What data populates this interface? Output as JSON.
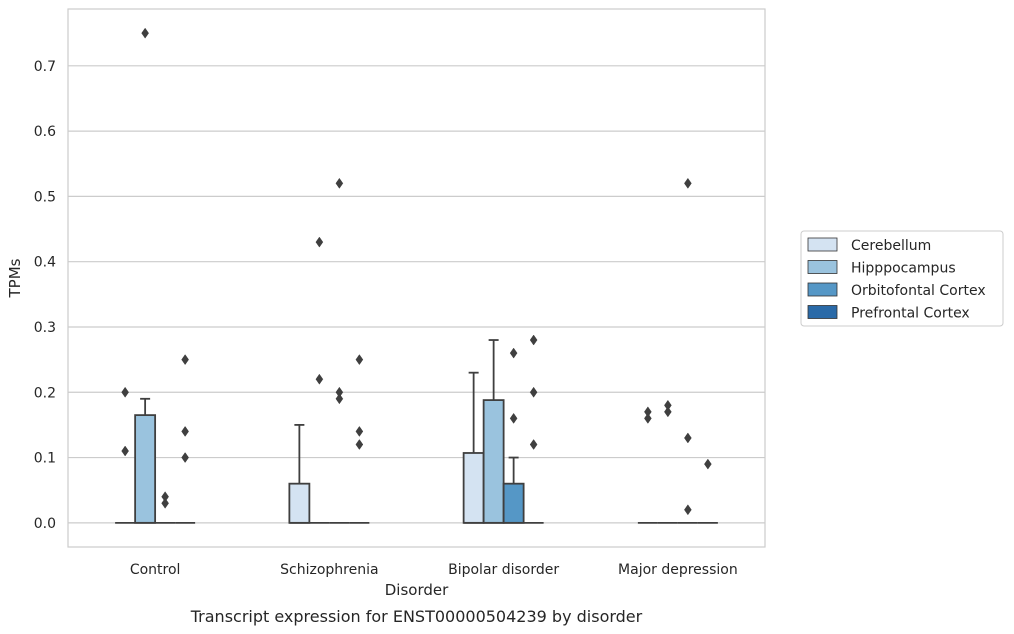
{
  "caption": "Transcript expression for ENST00000504239 by disorder",
  "chart_data": {
    "type": "box",
    "xlabel": "Disorder",
    "ylabel": "TPMs",
    "ylim": [
      -0.037,
      0.787
    ],
    "yticks": [
      0.0,
      0.1,
      0.2,
      0.3,
      0.4,
      0.5,
      0.6,
      0.7
    ],
    "ytick_labels": [
      "0.0",
      "0.1",
      "0.2",
      "0.3",
      "0.4",
      "0.5",
      "0.6",
      "0.7"
    ],
    "grid": "horizontal",
    "legend_position": "right",
    "categories": [
      "Control",
      "Schizophrenia",
      "Bipolar disorder",
      "Major depression"
    ],
    "series": [
      {
        "name": "Cerebellum",
        "color": "#d4e3f2",
        "boxes": [
          {
            "q1": 0,
            "median": 0,
            "q3": 0,
            "whisker_low": 0,
            "whisker_high": 0,
            "outliers": [
              0.2,
              0.11
            ]
          },
          {
            "q1": 0,
            "median": 0,
            "q3": 0.06,
            "whisker_low": 0,
            "whisker_high": 0.15,
            "outliers": []
          },
          {
            "q1": 0,
            "median": 0,
            "q3": 0.107,
            "whisker_low": 0,
            "whisker_high": 0.23,
            "outliers": []
          },
          {
            "q1": 0,
            "median": 0,
            "q3": 0,
            "whisker_low": 0,
            "whisker_high": 0,
            "outliers": [
              0.17,
              0.16
            ]
          }
        ]
      },
      {
        "name": "Hipppocampus",
        "color": "#9ac3de",
        "boxes": [
          {
            "q1": 0,
            "median": 0,
            "q3": 0.165,
            "whisker_low": 0,
            "whisker_high": 0.19,
            "outliers": [
              0.75
            ]
          },
          {
            "q1": 0,
            "median": 0,
            "q3": 0,
            "whisker_low": 0,
            "whisker_high": 0,
            "outliers": [
              0.43,
              0.22
            ]
          },
          {
            "q1": 0,
            "median": 0,
            "q3": 0.188,
            "whisker_low": 0,
            "whisker_high": 0.28,
            "outliers": []
          },
          {
            "q1": 0,
            "median": 0,
            "q3": 0,
            "whisker_low": 0,
            "whisker_high": 0,
            "outliers": [
              0.18,
              0.17
            ]
          }
        ]
      },
      {
        "name": "Orbitofontal Cortex",
        "color": "#5597c6",
        "boxes": [
          {
            "q1": 0,
            "median": 0,
            "q3": 0,
            "whisker_low": 0,
            "whisker_high": 0,
            "outliers": [
              0.04,
              0.03
            ]
          },
          {
            "q1": 0,
            "median": 0,
            "q3": 0,
            "whisker_low": 0,
            "whisker_high": 0,
            "outliers": [
              0.52,
              0.2,
              0.19
            ]
          },
          {
            "q1": 0,
            "median": 0,
            "q3": 0.06,
            "whisker_low": 0,
            "whisker_high": 0.1,
            "outliers": [
              0.26,
              0.16
            ]
          },
          {
            "q1": 0,
            "median": 0,
            "q3": 0,
            "whisker_low": 0,
            "whisker_high": 0,
            "outliers": [
              0.52,
              0.13,
              0.02
            ]
          }
        ]
      },
      {
        "name": "Prefrontal Cortex",
        "color": "#2a6aa8",
        "boxes": [
          {
            "q1": 0,
            "median": 0,
            "q3": 0,
            "whisker_low": 0,
            "whisker_high": 0,
            "outliers": [
              0.25,
              0.14,
              0.1
            ]
          },
          {
            "q1": 0,
            "median": 0,
            "q3": 0,
            "whisker_low": 0,
            "whisker_high": 0,
            "outliers": [
              0.25,
              0.14,
              0.12
            ]
          },
          {
            "q1": 0,
            "median": 0,
            "q3": 0,
            "whisker_low": 0,
            "whisker_high": 0,
            "outliers": [
              0.28,
              0.2,
              0.12
            ]
          },
          {
            "q1": 0,
            "median": 0,
            "q3": 0,
            "whisker_low": 0,
            "whisker_high": 0,
            "outliers": [
              0.09
            ]
          }
        ]
      }
    ]
  }
}
